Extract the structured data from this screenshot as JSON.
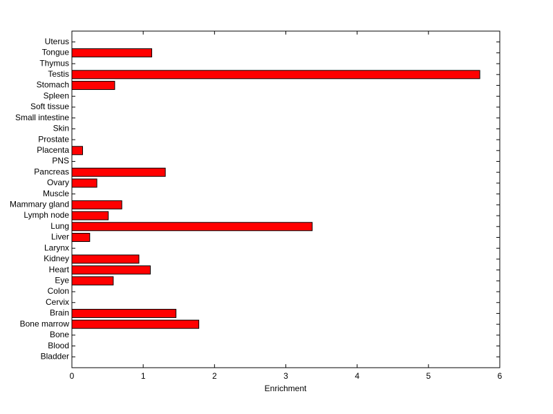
{
  "chart_data": {
    "type": "barh",
    "xlabel": "Enrichment",
    "categories": [
      "Bladder",
      "Blood",
      "Bone",
      "Bone marrow",
      "Brain",
      "Cervix",
      "Colon",
      "Eye",
      "Heart",
      "Kidney",
      "Larynx",
      "Liver",
      "Lung",
      "Lymph node",
      "Mammary gland",
      "Muscle",
      "Ovary",
      "Pancreas",
      "PNS",
      "Placenta",
      "Prostate",
      "Skin",
      "Small intestine",
      "Soft tissue",
      "Spleen",
      "Stomach",
      "Testis",
      "Thymus",
      "Tongue",
      "Uterus"
    ],
    "values": [
      0,
      0,
      0,
      1.78,
      1.46,
      0,
      0,
      0.58,
      1.1,
      0.94,
      0,
      0.25,
      3.37,
      0.51,
      0.7,
      0,
      0.35,
      1.31,
      0,
      0.15,
      0,
      0,
      0,
      0,
      0,
      0.6,
      5.72,
      0,
      1.12,
      0
    ],
    "color": "#ff0000",
    "xlim": [
      0,
      6
    ],
    "xticks": [
      0,
      1,
      2,
      3,
      4,
      5,
      6
    ],
    "grid": false
  }
}
